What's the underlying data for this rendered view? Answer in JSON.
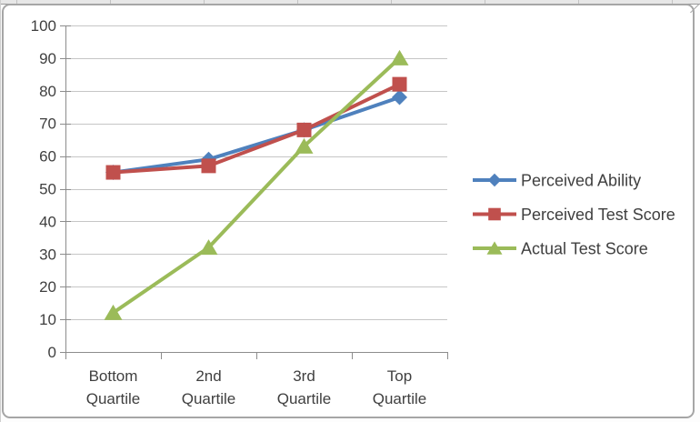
{
  "chart_data": {
    "type": "line",
    "title": "",
    "xlabel": "",
    "ylabel": "",
    "categories": [
      "Bottom Quartile",
      "2nd Quartile",
      "3rd Quartile",
      "Top Quartile"
    ],
    "series": [
      {
        "name": "Perceived Ability",
        "marker": "diamond",
        "color": "#4F81BD",
        "values": [
          55,
          59,
          68,
          78
        ]
      },
      {
        "name": "Perceived Test Score",
        "marker": "square",
        "color": "#C0504D",
        "values": [
          55,
          57,
          68,
          82
        ]
      },
      {
        "name": "Actual Test Score",
        "marker": "triangle",
        "color": "#9BBB59",
        "values": [
          12,
          32,
          63,
          90
        ]
      }
    ],
    "ylim": [
      0,
      100
    ],
    "yticks": [
      0,
      10,
      20,
      30,
      40,
      50,
      60,
      70,
      80,
      90,
      100
    ],
    "grid": true,
    "legend_position": "right"
  },
  "colors": {
    "gridline": "#c6c6c6",
    "axis": "#8c8c8c",
    "text": "#3f3f3f",
    "frame_border": "#a6a6a6",
    "background": "#ffffff"
  }
}
